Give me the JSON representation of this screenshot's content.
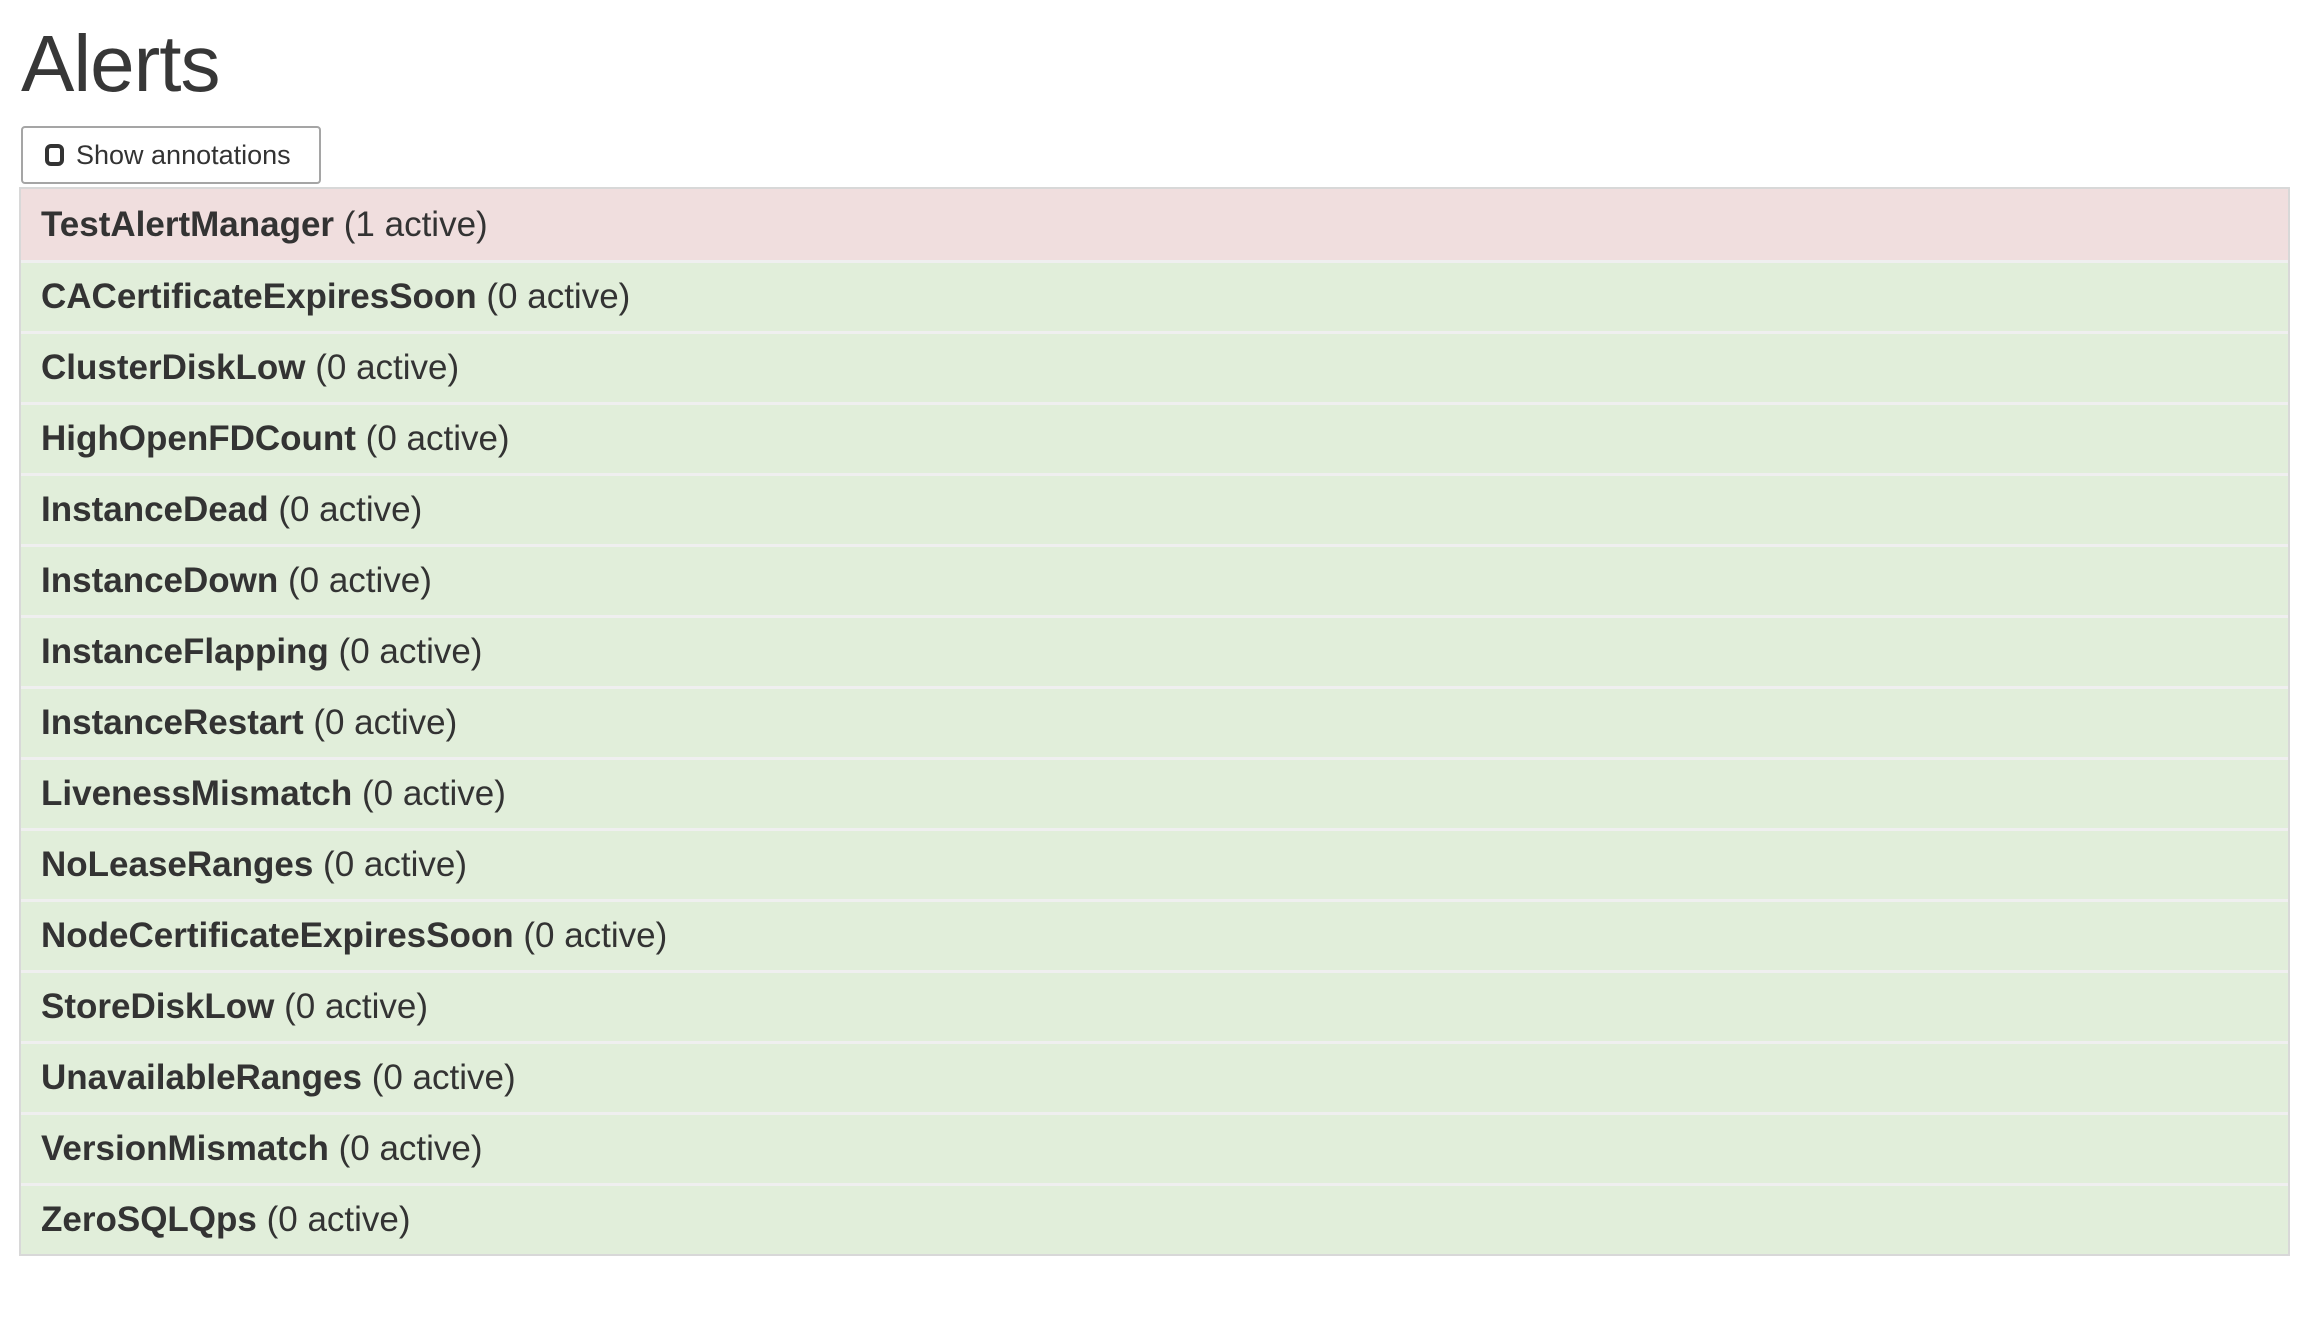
{
  "page_title": "Alerts",
  "toolbar": {
    "show_annotations_label": "Show annotations",
    "checkbox_checked": false
  },
  "colors": {
    "firing_row_bg": "#f0dede",
    "inactive_row_bg": "#e1eeda",
    "table_border": "#d8d8d8",
    "row_separator": "#efefef",
    "button_border": "#a5a5a5",
    "text": "#333333"
  },
  "alerts": [
    {
      "name": "TestAlertManager",
      "active_count": 1,
      "state": "firing",
      "count_label": "(1 active)"
    },
    {
      "name": "CACertificateExpiresSoon",
      "active_count": 0,
      "state": "inactive",
      "count_label": "(0 active)"
    },
    {
      "name": "ClusterDiskLow",
      "active_count": 0,
      "state": "inactive",
      "count_label": "(0 active)"
    },
    {
      "name": "HighOpenFDCount",
      "active_count": 0,
      "state": "inactive",
      "count_label": "(0 active)"
    },
    {
      "name": "InstanceDead",
      "active_count": 0,
      "state": "inactive",
      "count_label": "(0 active)"
    },
    {
      "name": "InstanceDown",
      "active_count": 0,
      "state": "inactive",
      "count_label": "(0 active)"
    },
    {
      "name": "InstanceFlapping",
      "active_count": 0,
      "state": "inactive",
      "count_label": "(0 active)"
    },
    {
      "name": "InstanceRestart",
      "active_count": 0,
      "state": "inactive",
      "count_label": "(0 active)"
    },
    {
      "name": "LivenessMismatch",
      "active_count": 0,
      "state": "inactive",
      "count_label": "(0 active)"
    },
    {
      "name": "NoLeaseRanges",
      "active_count": 0,
      "state": "inactive",
      "count_label": "(0 active)"
    },
    {
      "name": "NodeCertificateExpiresSoon",
      "active_count": 0,
      "state": "inactive",
      "count_label": "(0 active)"
    },
    {
      "name": "StoreDiskLow",
      "active_count": 0,
      "state": "inactive",
      "count_label": "(0 active)"
    },
    {
      "name": "UnavailableRanges",
      "active_count": 0,
      "state": "inactive",
      "count_label": "(0 active)"
    },
    {
      "name": "VersionMismatch",
      "active_count": 0,
      "state": "inactive",
      "count_label": "(0 active)"
    },
    {
      "name": "ZeroSQLQps",
      "active_count": 0,
      "state": "inactive",
      "count_label": "(0 active)"
    }
  ]
}
